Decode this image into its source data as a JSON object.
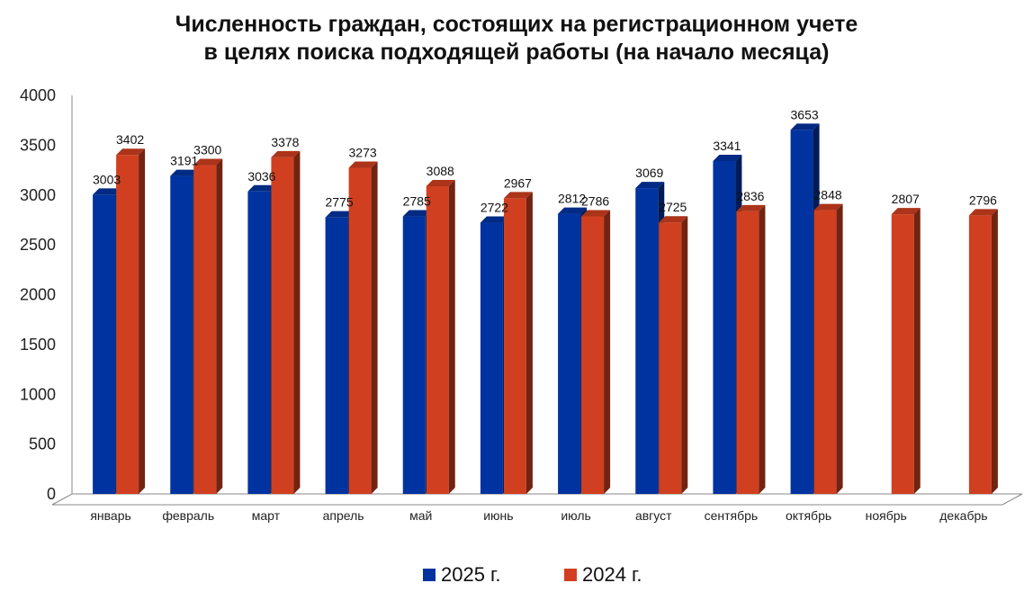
{
  "chart_data": {
    "type": "bar",
    "title": [
      "Численность граждан, состоящих на регистрационном учете",
      "в целях поиска подходящей работы (на начало месяца)"
    ],
    "categories": [
      "январь",
      "февраль",
      "март",
      "апрель",
      "май",
      "июнь",
      "июль",
      "август",
      "сентябрь",
      "октябрь",
      "ноябрь",
      "декабрь"
    ],
    "series": [
      {
        "name": "2025 г.",
        "color": "#0033A0",
        "values": [
          3003,
          3191,
          3036,
          2775,
          2785,
          2722,
          2812,
          3069,
          3341,
          3653,
          null,
          null
        ]
      },
      {
        "name": "2024 г.",
        "color": "#D04020",
        "values": [
          3402,
          3300,
          3378,
          3273,
          3088,
          2967,
          2786,
          2725,
          2836,
          2848,
          2807,
          2796
        ]
      }
    ],
    "ylim": [
      0,
      4000
    ],
    "yticks": [
      0,
      500,
      1000,
      1500,
      2000,
      2500,
      3000,
      3500,
      4000
    ],
    "grid": false,
    "legend": "bottom",
    "xlabel": "",
    "ylabel": ""
  }
}
